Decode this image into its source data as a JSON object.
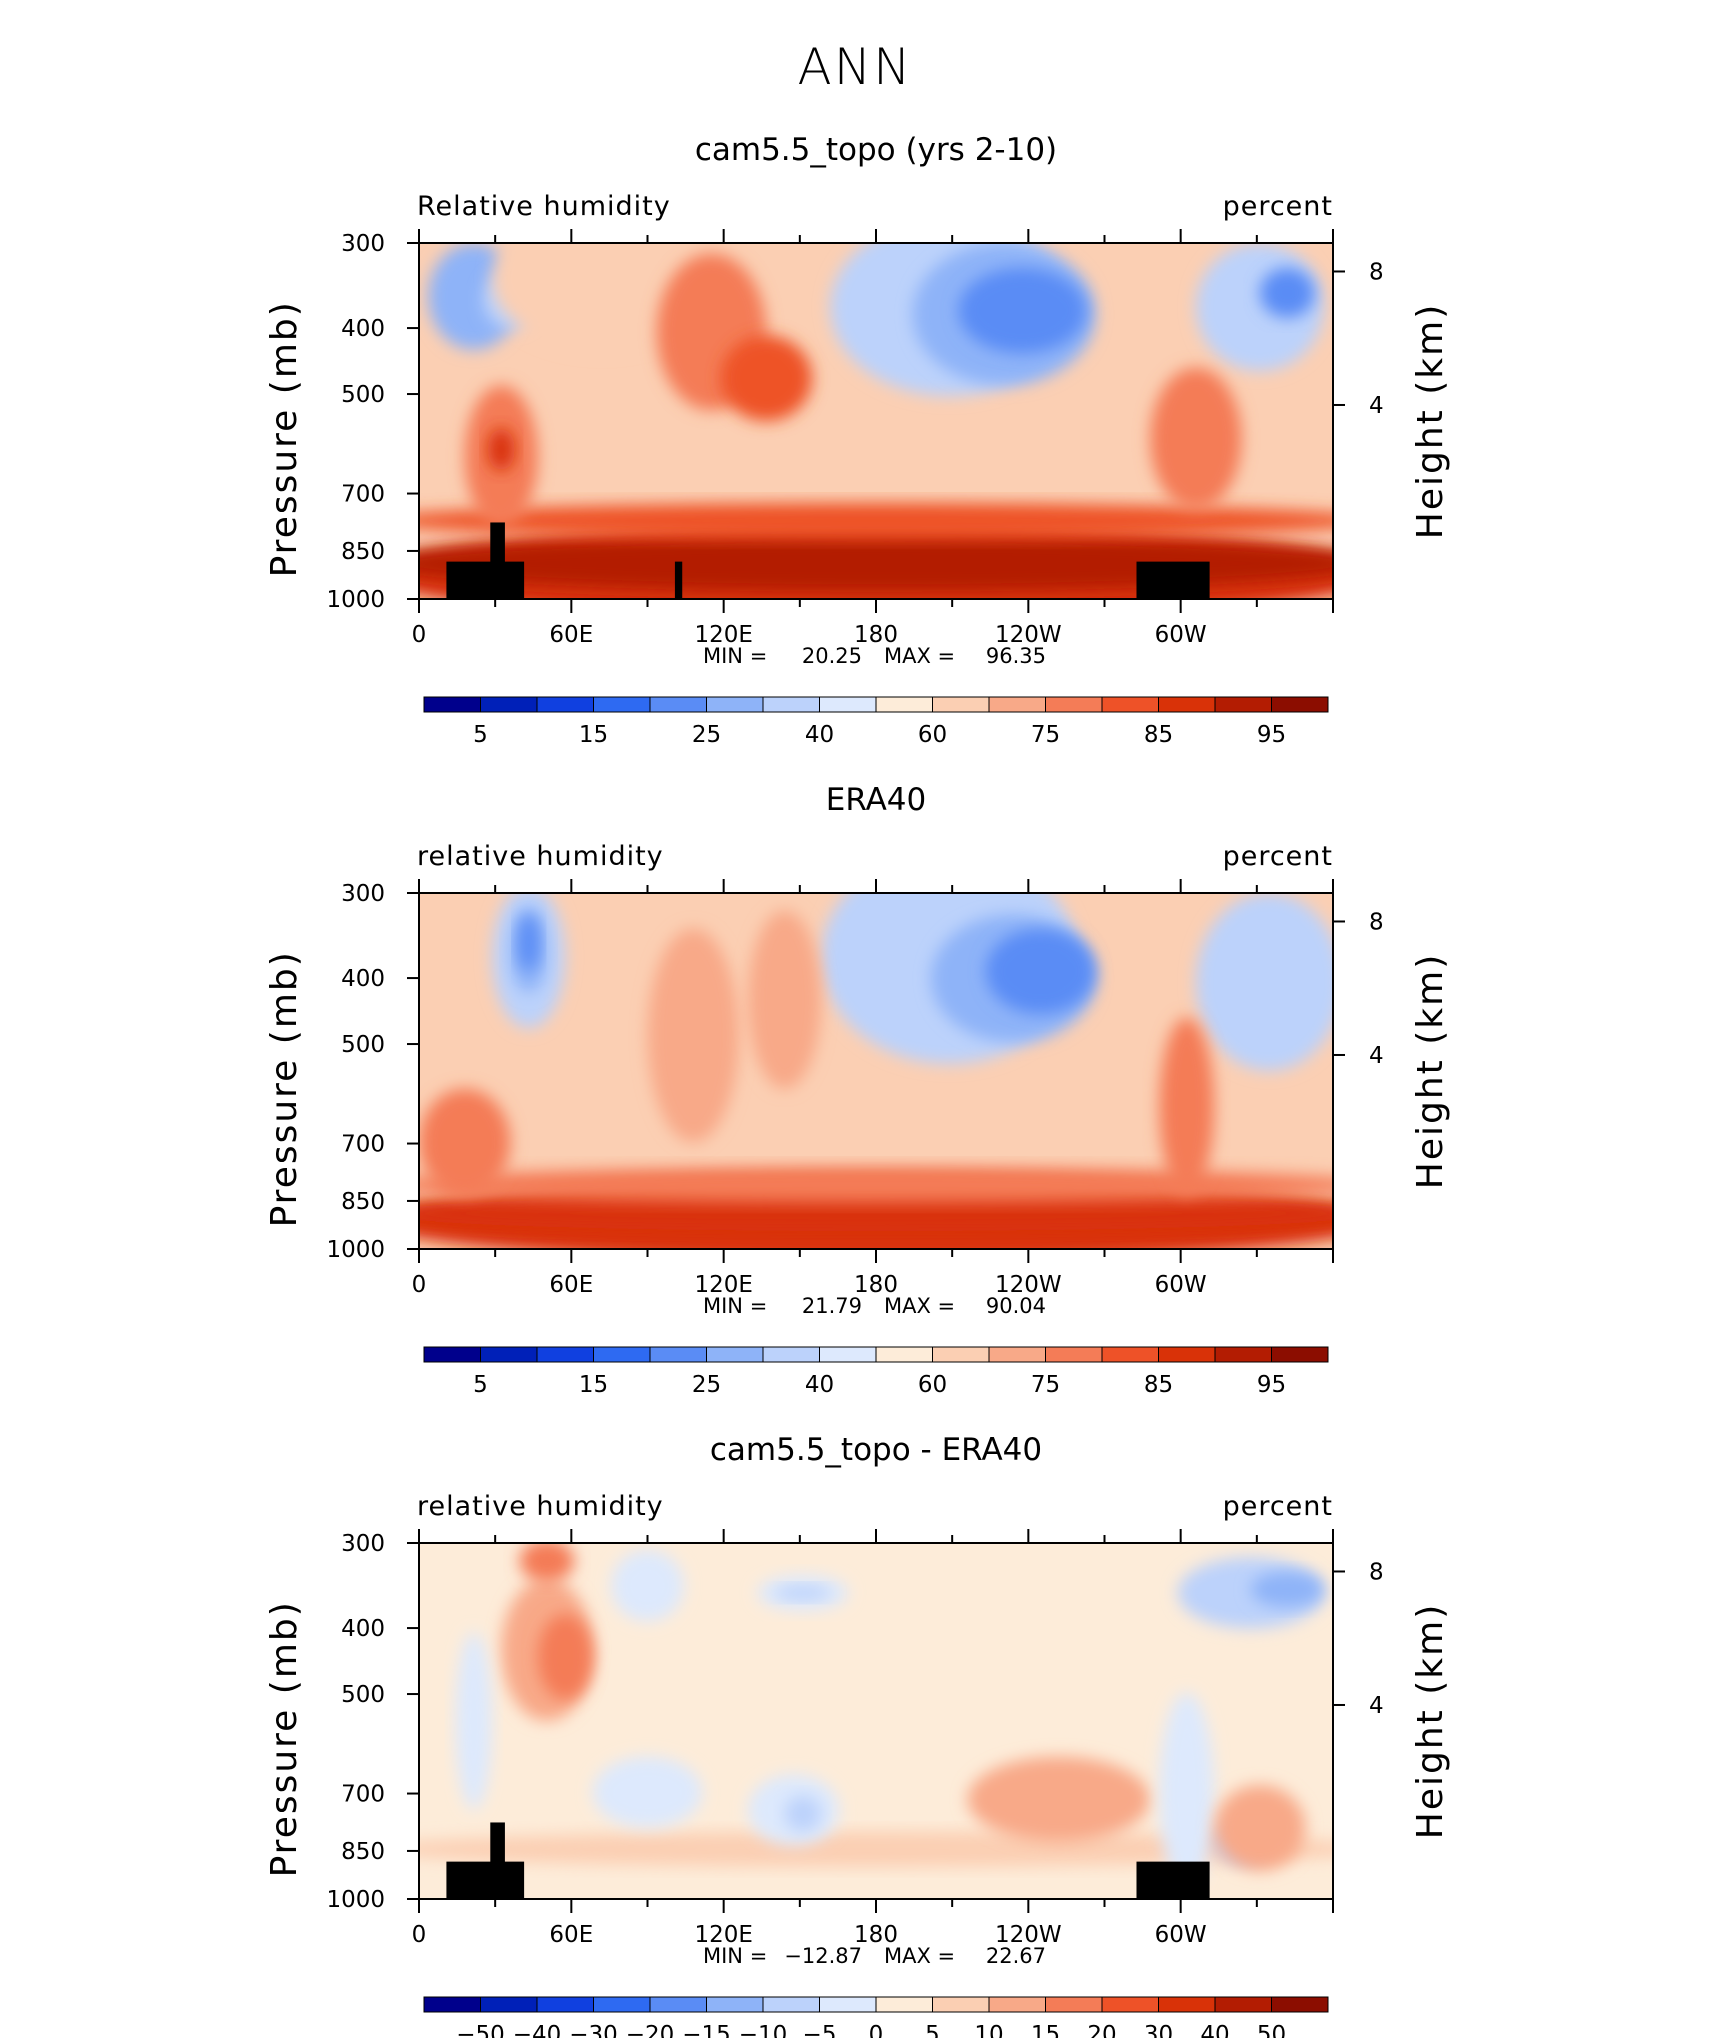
{
  "figure": {
    "title": "ANN"
  },
  "chart_data": [
    {
      "type": "heatmap",
      "title": "cam5.5_topo (yrs 2-10)",
      "variable_label": "Relative humidity",
      "units_label": "percent",
      "ylabel": "Pressure (mb)",
      "ylabel_right": "Height (km)",
      "x_ticks": [
        "0",
        "60E",
        "120E",
        "180",
        "120W",
        "60W"
      ],
      "y_ticks": [
        "300",
        "400",
        "500",
        "700",
        "850",
        "1000"
      ],
      "y_ticks_right": [
        "8",
        "4"
      ],
      "ylim": [
        1000,
        300
      ],
      "min_label": "MIN =",
      "min_value": "20.25",
      "max_label": "MAX =",
      "max_value": "96.35",
      "colorbar_labels": [
        "5",
        "15",
        "25",
        "40",
        "60",
        "75",
        "85",
        "95"
      ],
      "colorbar_colors": [
        "#00008c",
        "#0020b8",
        "#1040e0",
        "#2e6af2",
        "#5a8cf5",
        "#8eb3f8",
        "#bcd2fb",
        "#dde9fd",
        "#fdecd9",
        "#fbcfb3",
        "#f8a988",
        "#f47c57",
        "#ee5228",
        "#d93208",
        "#b31c02",
        "#8c0d00"
      ],
      "value_range": [
        20.25,
        96.35
      ],
      "topography": true
    },
    {
      "type": "heatmap",
      "title": "ERA40",
      "variable_label": "relative humidity",
      "units_label": "percent",
      "ylabel": "Pressure (mb)",
      "ylabel_right": "Height (km)",
      "x_ticks": [
        "0",
        "60E",
        "120E",
        "180",
        "120W",
        "60W"
      ],
      "y_ticks": [
        "300",
        "400",
        "500",
        "700",
        "850",
        "1000"
      ],
      "y_ticks_right": [
        "8",
        "4"
      ],
      "ylim": [
        1000,
        300
      ],
      "min_label": "MIN =",
      "min_value": "21.79",
      "max_label": "MAX =",
      "max_value": "90.04",
      "colorbar_labels": [
        "5",
        "15",
        "25",
        "40",
        "60",
        "75",
        "85",
        "95"
      ],
      "colorbar_colors": [
        "#00008c",
        "#0020b8",
        "#1040e0",
        "#2e6af2",
        "#5a8cf5",
        "#8eb3f8",
        "#bcd2fb",
        "#dde9fd",
        "#fdecd9",
        "#fbcfb3",
        "#f8a988",
        "#f47c57",
        "#ee5228",
        "#d93208",
        "#b31c02",
        "#8c0d00"
      ],
      "value_range": [
        21.79,
        90.04
      ],
      "topography": false
    },
    {
      "type": "heatmap",
      "title": "cam5.5_topo - ERA40",
      "variable_label": "relative humidity",
      "units_label": "percent",
      "ylabel": "Pressure (mb)",
      "ylabel_right": "Height (km)",
      "x_ticks": [
        "0",
        "60E",
        "120E",
        "180",
        "120W",
        "60W"
      ],
      "y_ticks": [
        "300",
        "400",
        "500",
        "700",
        "850",
        "1000"
      ],
      "y_ticks_right": [
        "8",
        "4"
      ],
      "ylim": [
        1000,
        300
      ],
      "min_label": "MIN =",
      "min_value": "−12.87",
      "max_label": "MAX =",
      "max_value": "22.67",
      "colorbar_labels": [
        "−50",
        "−40",
        "−30",
        "−20",
        "−15",
        "−10",
        "−5",
        "0",
        "5",
        "10",
        "15",
        "20",
        "30",
        "40",
        "50"
      ],
      "colorbar_colors": [
        "#00008c",
        "#0020b8",
        "#1040e0",
        "#2e6af2",
        "#5a8cf5",
        "#8eb3f8",
        "#bcd2fb",
        "#dde9fd",
        "#fdecd9",
        "#fbcfb3",
        "#f8a988",
        "#f47c57",
        "#ee5228",
        "#d93208",
        "#b31c02",
        "#8c0d00"
      ],
      "value_range": [
        -12.87,
        22.67
      ],
      "topography": true
    }
  ]
}
